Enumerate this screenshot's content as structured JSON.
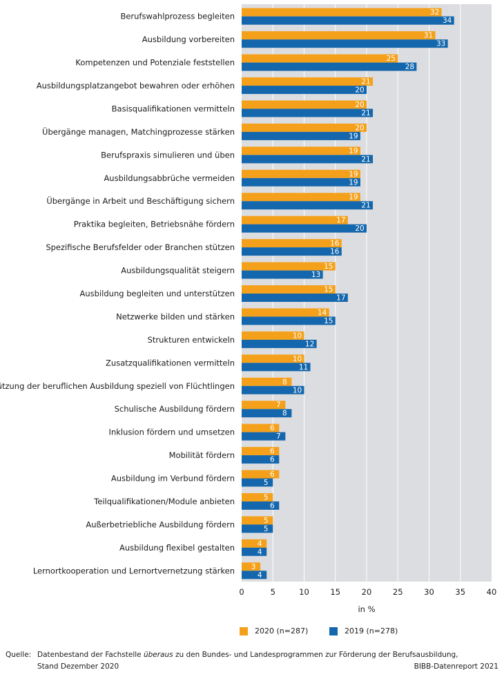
{
  "colors": {
    "series_2020": "#f5a01a",
    "series_2019": "#1467ad",
    "plot_bg": "#dcdde0",
    "grid": "#ffffff"
  },
  "chart_data": {
    "type": "bar",
    "orientation": "horizontal",
    "categories": [
      "Berufswahlprozess begleiten",
      "Ausbildung vorbereiten",
      "Kompetenzen und Potenziale feststellen",
      "Ausbildungsplatzangebot bewahren oder erhöhen",
      "Basisqualifikationen vermitteln",
      "Übergänge managen, Matchingprozesse stärken",
      "Berufspraxis simulieren und üben",
      "Ausbildungsabbrüche vermeiden",
      "Übergänge in Arbeit und Beschäftigung sichern",
      "Praktika begleiten, Betriebsnähe fördern",
      "Spezifische Berufsfelder oder Branchen stützen",
      "Ausbildungsqualität steigern",
      "Ausbildung begleiten und unterstützen",
      "Netzwerke bilden und stärken",
      "Strukturen entwickeln",
      "Zusatzqualifikationen vermitteln",
      "Unterstützung der beruflichen Ausbildung speziell von Flüchtlingen",
      "Schulische Ausbildung fördern",
      "Inklusion fördern und umsetzen",
      "Mobilität fördern",
      "Ausbildung im Verbund fördern",
      "Teilqualifikationen/Module anbieten",
      "Außerbetriebliche Ausbildung fördern",
      "Ausbildung flexibel gestalten",
      "Lernortkooperation und Lernortvernetzung stärken"
    ],
    "series": [
      {
        "name": "2020 (n=287)",
        "values": [
          32,
          31,
          25,
          21,
          20,
          20,
          19,
          19,
          19,
          17,
          16,
          15,
          15,
          14,
          10,
          10,
          8,
          7,
          6,
          6,
          6,
          5,
          5,
          4,
          3
        ]
      },
      {
        "name": "2019 (n=278)",
        "values": [
          34,
          33,
          28,
          20,
          21,
          19,
          21,
          19,
          21,
          20,
          16,
          13,
          17,
          15,
          12,
          11,
          10,
          8,
          7,
          6,
          5,
          6,
          5,
          4,
          4
        ]
      }
    ],
    "xlim": [
      0,
      40
    ],
    "xticks": [
      "0",
      "5",
      "10",
      "15",
      "20",
      "25",
      "30",
      "35",
      "40"
    ],
    "xlabel": "in %",
    "legend_position": "bottom"
  },
  "footer": {
    "source_label": "Quelle:",
    "source_pre": "Datenbestand der Fachstelle ",
    "source_emph": "überaus",
    "source_post": " zu den Bundes- und Landesprogrammen zur Förderung der Berufsausbildung,",
    "source_line2": "Stand Dezember 2020",
    "report": "BIBB-Datenreport 2021"
  }
}
